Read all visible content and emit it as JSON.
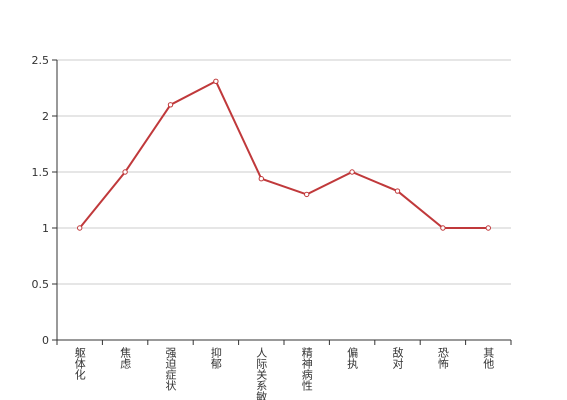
{
  "chart_data": {
    "type": "line",
    "categories": [
      "躯体化",
      "焦虑",
      "强迫症状",
      "抑郁",
      "人际关系敏感",
      "精神病性",
      "偏执",
      "敌对",
      "恐怖",
      "其他"
    ],
    "values": [
      1,
      1.5,
      2.1,
      2.31,
      1.44,
      1.3,
      1.5,
      1.33,
      1,
      1
    ],
    "color": "#c0393b",
    "ylim": [
      0,
      2.5
    ],
    "yticks": [
      0,
      0.5,
      1,
      1.5,
      2,
      2.5
    ],
    "grid": true
  }
}
